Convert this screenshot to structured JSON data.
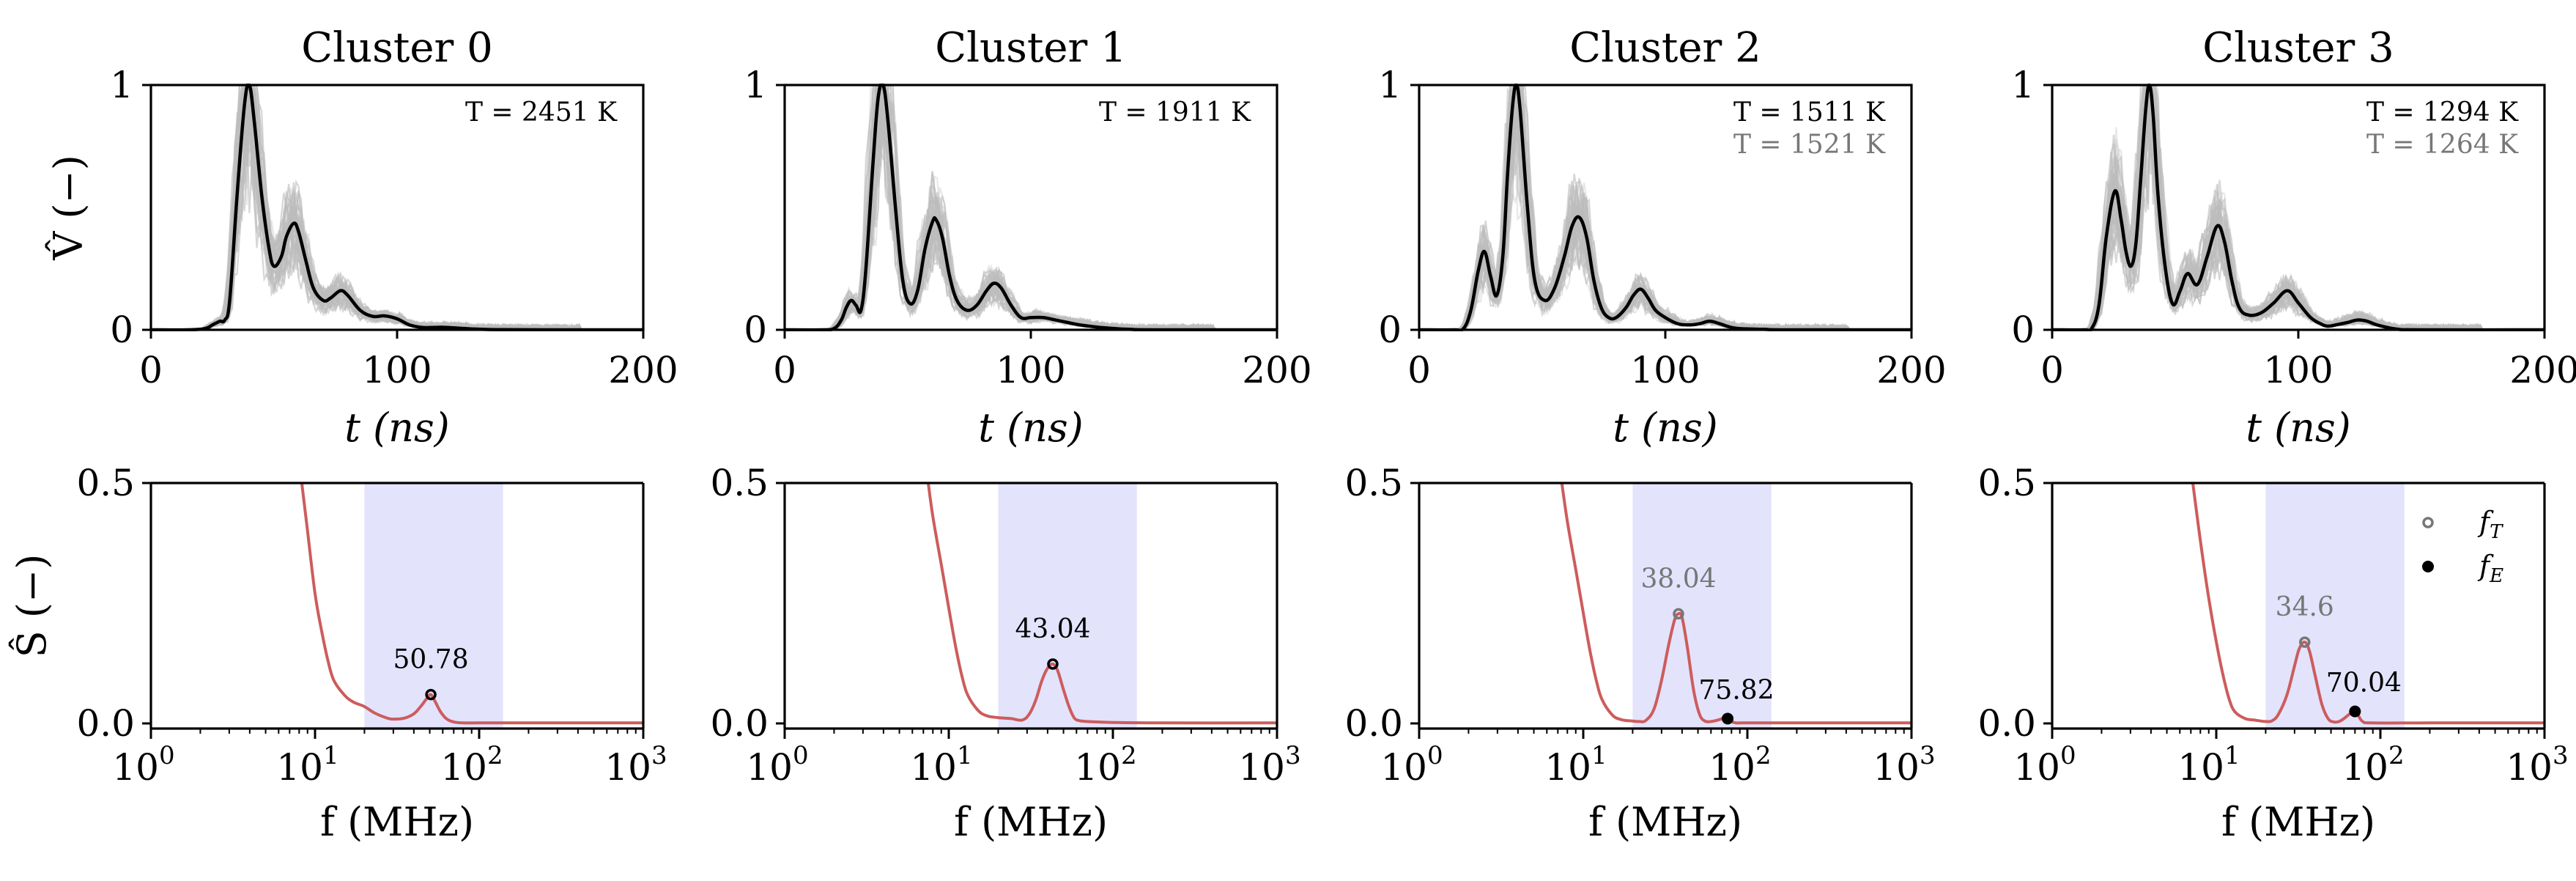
{
  "figure": {
    "colors": {
      "mean_line": "#000000",
      "traces": "#bdbdbd",
      "spectrum_line": "#cd5c5c",
      "band": "#e3e3fc",
      "secondary_text": "#777777",
      "f_T_marker": "#777777",
      "f_E_marker": "#000000"
    }
  },
  "chart_data": [
    {
      "type": "line",
      "title": "Cluster 0",
      "xlabel": "t (ns)",
      "ylabel": "V̂ (−)",
      "xlim": [
        0,
        200
      ],
      "ylim": [
        0,
        1
      ],
      "xticks": [
        "0",
        "100",
        "200"
      ],
      "yticks": [
        "0",
        "1"
      ],
      "annotations": [
        {
          "text": "T = 2451 K",
          "color": "primary"
        }
      ],
      "series": [
        {
          "name": "mean",
          "x": [
            0,
            15,
            22,
            25,
            28,
            30,
            32,
            35,
            38,
            40,
            42,
            45,
            48,
            50,
            53,
            55,
            58,
            60,
            63,
            66,
            70,
            73,
            77,
            80,
            85,
            90,
            95,
            100,
            105,
            110,
            115,
            120,
            130,
            140,
            160,
            200
          ],
          "y": [
            0,
            0,
            0.005,
            0.02,
            0.035,
            0.04,
            0.12,
            0.55,
            0.92,
            1.0,
            0.85,
            0.55,
            0.33,
            0.26,
            0.3,
            0.38,
            0.435,
            0.4,
            0.28,
            0.17,
            0.12,
            0.13,
            0.16,
            0.14,
            0.08,
            0.055,
            0.057,
            0.045,
            0.02,
            0.01,
            0.01,
            0.01,
            0.004,
            0.001,
            0,
            0
          ]
        }
      ]
    },
    {
      "type": "line",
      "title": "Cluster 1",
      "xlabel": "t (ns)",
      "ylabel": "",
      "xlim": [
        0,
        200
      ],
      "ylim": [
        0,
        1
      ],
      "xticks": [
        "0",
        "100",
        "200"
      ],
      "yticks": [
        "0",
        "1"
      ],
      "annotations": [
        {
          "text": "T = 1911 K",
          "color": "primary"
        }
      ],
      "series": [
        {
          "name": "mean",
          "x": [
            0,
            15,
            20,
            23,
            25,
            27,
            29,
            31,
            33,
            36,
            38,
            40,
            42,
            45,
            48,
            51,
            54,
            57,
            60,
            61.5,
            64,
            67,
            70,
            74,
            78,
            82,
            85,
            88,
            92,
            96,
            100,
            105,
            110,
            115,
            120,
            130,
            140,
            150,
            200
          ],
          "y": [
            0,
            0,
            0.005,
            0.04,
            0.09,
            0.12,
            0.1,
            0.08,
            0.25,
            0.7,
            0.95,
            1.0,
            0.85,
            0.5,
            0.2,
            0.107,
            0.16,
            0.33,
            0.44,
            0.45,
            0.38,
            0.22,
            0.12,
            0.08,
            0.1,
            0.16,
            0.19,
            0.17,
            0.1,
            0.05,
            0.05,
            0.05,
            0.04,
            0.03,
            0.02,
            0.008,
            0.002,
            0,
            0
          ]
        }
      ]
    },
    {
      "type": "line",
      "title": "Cluster 2",
      "xlabel": "t (ns)",
      "ylabel": "",
      "xlim": [
        0,
        200
      ],
      "ylim": [
        0,
        1
      ],
      "xticks": [
        "0",
        "100",
        "200"
      ],
      "yticks": [
        "0",
        "1"
      ],
      "annotations": [
        {
          "text": "T = 1511 K",
          "color": "primary"
        },
        {
          "text": "T = 1521 K",
          "color": "secondary"
        }
      ],
      "series": [
        {
          "name": "mean",
          "x": [
            0,
            14,
            18,
            21,
            24,
            26.5,
            29,
            31.5,
            34,
            36,
            38,
            39.5,
            41,
            44,
            47,
            51,
            55,
            59,
            62,
            65,
            68,
            71,
            74,
            77,
            80,
            84,
            87,
            90,
            93,
            96,
            100,
            105,
            110,
            114,
            118,
            122,
            126,
            130,
            140,
            150,
            200
          ],
          "y": [
            0,
            0,
            0.005,
            0.08,
            0.24,
            0.32,
            0.22,
            0.14,
            0.3,
            0.65,
            0.92,
            1.0,
            0.9,
            0.5,
            0.2,
            0.12,
            0.17,
            0.3,
            0.42,
            0.46,
            0.38,
            0.2,
            0.09,
            0.05,
            0.05,
            0.09,
            0.14,
            0.166,
            0.13,
            0.08,
            0.05,
            0.025,
            0.02,
            0.025,
            0.035,
            0.025,
            0.012,
            0.005,
            0.002,
            0,
            0
          ]
        }
      ]
    },
    {
      "type": "line",
      "title": "Cluster 3",
      "xlabel": "t (ns)",
      "ylabel": "",
      "xlim": [
        0,
        200
      ],
      "ylim": [
        0,
        1
      ],
      "xticks": [
        "0",
        "100",
        "200"
      ],
      "yticks": [
        "0",
        "1"
      ],
      "annotations": [
        {
          "text": "T = 1294 K",
          "color": "primary"
        },
        {
          "text": "T = 1264 K",
          "color": "secondary"
        }
      ],
      "series": [
        {
          "name": "mean",
          "x": [
            0,
            13,
            16,
            19,
            22,
            25.5,
            28,
            30,
            32,
            34,
            36,
            38,
            39.5,
            41,
            43,
            46,
            49,
            52,
            55,
            59,
            63,
            67,
            70,
            73,
            76,
            80,
            85,
            90,
            95.5,
            100,
            105,
            109,
            112,
            116,
            120,
            124,
            128,
            132,
            140,
            150,
            200
          ],
          "y": [
            0,
            0,
            0.005,
            0.1,
            0.38,
            0.567,
            0.45,
            0.32,
            0.26,
            0.35,
            0.62,
            0.9,
            1.0,
            0.88,
            0.55,
            0.25,
            0.105,
            0.16,
            0.23,
            0.185,
            0.3,
            0.424,
            0.36,
            0.2,
            0.09,
            0.06,
            0.07,
            0.11,
            0.16,
            0.11,
            0.05,
            0.025,
            0.015,
            0.022,
            0.03,
            0.04,
            0.035,
            0.02,
            0.003,
            0,
            0
          ]
        }
      ]
    },
    {
      "type": "line",
      "title": "",
      "xlabel": "f (MHz)",
      "ylabel": "Ŝ (−)",
      "xscale": "log",
      "xlim": [
        1,
        1000
      ],
      "ylim": [
        -0.012,
        0.5
      ],
      "xticks": [
        {
          "base": "10",
          "exp": "0"
        },
        {
          "base": "10",
          "exp": "1"
        },
        {
          "base": "10",
          "exp": "2"
        },
        {
          "base": "10",
          "exp": "3"
        }
      ],
      "yticks": [
        "0.0",
        "0.5"
      ],
      "band": [
        20,
        140
      ],
      "series": [
        {
          "name": "spectrum",
          "x": [
            8.3,
            9,
            10,
            11,
            12,
            13,
            15,
            17,
            20,
            23,
            27,
            30,
            35,
            40,
            44,
            48,
            50.78,
            54,
            58,
            63,
            70,
            80,
            100,
            200,
            1000
          ],
          "y": [
            0.5,
            0.4,
            0.27,
            0.19,
            0.13,
            0.09,
            0.06,
            0.045,
            0.035,
            0.022,
            0.012,
            0.009,
            0.011,
            0.02,
            0.035,
            0.052,
            0.06,
            0.045,
            0.025,
            0.01,
            0.003,
            0.001,
            0.001,
            0.001,
            0.001
          ]
        }
      ],
      "markers": [
        {
          "kind": "f_E",
          "style": "open-black",
          "x": 50.78,
          "y": 0.06,
          "label": "50.78",
          "label_color": "primary"
        }
      ]
    },
    {
      "type": "line",
      "title": "",
      "xlabel": "f (MHz)",
      "ylabel": "",
      "xscale": "log",
      "xlim": [
        1,
        1000
      ],
      "ylim": [
        -0.012,
        0.5
      ],
      "xticks": [
        {
          "base": "10",
          "exp": "0"
        },
        {
          "base": "10",
          "exp": "1"
        },
        {
          "base": "10",
          "exp": "2"
        },
        {
          "base": "10",
          "exp": "3"
        }
      ],
      "yticks": [
        "0.0",
        "0.5"
      ],
      "band": [
        20,
        140
      ],
      "series": [
        {
          "name": "spectrum",
          "x": [
            7.5,
            8,
            9,
            10,
            11,
            12,
            13,
            15,
            17,
            20,
            24,
            28,
            31,
            34,
            37,
            40,
            43.04,
            46,
            50,
            54,
            58,
            62,
            70,
            100,
            200,
            1000
          ],
          "y": [
            0.5,
            0.43,
            0.33,
            0.24,
            0.16,
            0.1,
            0.06,
            0.028,
            0.016,
            0.012,
            0.01,
            0.007,
            0.02,
            0.05,
            0.09,
            0.115,
            0.1235,
            0.11,
            0.07,
            0.035,
            0.012,
            0.006,
            0.004,
            0.002,
            0.001,
            0.001
          ]
        }
      ],
      "markers": [
        {
          "kind": "f_E",
          "style": "open-black",
          "x": 43.04,
          "y": 0.1235,
          "label": "43.04",
          "label_color": "primary"
        }
      ]
    },
    {
      "type": "line",
      "title": "",
      "xlabel": "f (MHz)",
      "ylabel": "",
      "xscale": "log",
      "xlim": [
        1,
        1000
      ],
      "ylim": [
        -0.012,
        0.5
      ],
      "xticks": [
        {
          "base": "10",
          "exp": "0"
        },
        {
          "base": "10",
          "exp": "1"
        },
        {
          "base": "10",
          "exp": "2"
        },
        {
          "base": "10",
          "exp": "3"
        }
      ],
      "yticks": [
        "0.0",
        "0.5"
      ],
      "band": [
        20,
        140
      ],
      "series": [
        {
          "name": "spectrum",
          "x": [
            7.4,
            8,
            9,
            10,
            11,
            12,
            13,
            15,
            17,
            20,
            22,
            24,
            27,
            30,
            33,
            36,
            38.04,
            40,
            43,
            47,
            51,
            55,
            60,
            66,
            72,
            75.82,
            80,
            85,
            95,
            200,
            1000
          ],
          "y": [
            0.5,
            0.42,
            0.32,
            0.23,
            0.15,
            0.09,
            0.05,
            0.018,
            0.008,
            0.005,
            0.004,
            0.006,
            0.03,
            0.09,
            0.16,
            0.215,
            0.228,
            0.22,
            0.16,
            0.07,
            0.02,
            0.005,
            0.004,
            0.007,
            0.011,
            0.01,
            0.004,
            0.001,
            0.001,
            0.001,
            0.001
          ]
        }
      ],
      "markers": [
        {
          "kind": "f_T",
          "style": "open-gray",
          "x": 38.04,
          "y": 0.228,
          "label": "38.04",
          "label_color": "secondary"
        },
        {
          "kind": "f_E",
          "style": "filled-black",
          "x": 75.82,
          "y": 0.01,
          "label": "75.82",
          "label_color": "primary"
        }
      ]
    },
    {
      "type": "line",
      "title": "",
      "xlabel": "f (MHz)",
      "ylabel": "",
      "xscale": "log",
      "xlim": [
        1,
        1000
      ],
      "ylim": [
        -0.012,
        0.5
      ],
      "xticks": [
        {
          "base": "10",
          "exp": "0"
        },
        {
          "base": "10",
          "exp": "1"
        },
        {
          "base": "10",
          "exp": "2"
        },
        {
          "base": "10",
          "exp": "3"
        }
      ],
      "yticks": [
        "0.0",
        "0.5"
      ],
      "band": [
        20,
        140
      ],
      "series": [
        {
          "name": "spectrum",
          "x": [
            7.2,
            8,
            9,
            10,
            11,
            12,
            13,
            15,
            17,
            20,
            22,
            24,
            27,
            30,
            32,
            34.6,
            37,
            40,
            44,
            48,
            52,
            56,
            60,
            64,
            68,
            70.04,
            73,
            78,
            90,
            200,
            1000
          ],
          "y": [
            0.5,
            0.38,
            0.26,
            0.17,
            0.1,
            0.05,
            0.024,
            0.01,
            0.007,
            0.004,
            0.006,
            0.02,
            0.06,
            0.12,
            0.155,
            0.169,
            0.15,
            0.1,
            0.04,
            0.01,
            0.003,
            0.004,
            0.01,
            0.018,
            0.024,
            0.025,
            0.018,
            0.004,
            0.001,
            0.001,
            0.001
          ]
        }
      ],
      "markers": [
        {
          "kind": "f_T",
          "style": "open-gray",
          "x": 34.6,
          "y": 0.169,
          "label": "34.6",
          "label_color": "secondary"
        },
        {
          "kind": "f_E",
          "style": "filled-black",
          "x": 70.04,
          "y": 0.025,
          "label": "70.04",
          "label_color": "primary"
        }
      ],
      "legend": {
        "placement": "top-right",
        "entries": [
          {
            "marker": "open-gray",
            "label": "f",
            "sub": "T"
          },
          {
            "marker": "filled-black",
            "label": "f",
            "sub": "E"
          }
        ]
      }
    }
  ]
}
